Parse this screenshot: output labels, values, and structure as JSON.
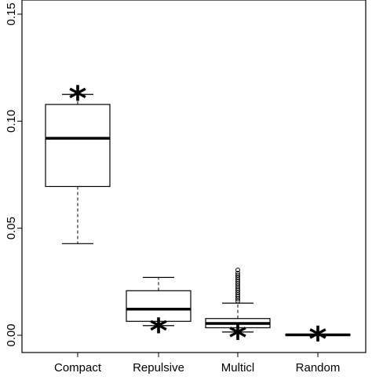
{
  "chart_data": {
    "type": "boxplot",
    "title": "",
    "xlabel": "",
    "ylabel": "",
    "ylim": [
      -0.005,
      0.155
    ],
    "yticks": [
      0.0,
      0.05,
      0.1,
      0.15
    ],
    "ytick_labels": [
      "0.00",
      "0.05",
      "0.10",
      "0.15"
    ],
    "grid": false,
    "legend": "none",
    "categories": [
      "Compact",
      "Repulsive",
      "Multicl",
      "Random"
    ],
    "boxes": [
      {
        "category": "Compact",
        "whisker_low": 0.0428,
        "q1": 0.0695,
        "median": 0.092,
        "q3": 0.1078,
        "whisker_high": 0.1125,
        "outliers": [],
        "star": 0.112
      },
      {
        "category": "Repulsive",
        "whisker_low": 0.0045,
        "q1": 0.0065,
        "median": 0.0122,
        "q3": 0.0208,
        "whisker_high": 0.027,
        "outliers": [],
        "star": 0.0035
      },
      {
        "category": "Multicl",
        "whisker_low": 0.0015,
        "q1": 0.0035,
        "median": 0.0055,
        "q3": 0.0078,
        "whisker_high": 0.015,
        "outliers": [
          0.016,
          0.017,
          0.018,
          0.019,
          0.02,
          0.021,
          0.022,
          0.023,
          0.024,
          0.025,
          0.026,
          0.027,
          0.028,
          0.029,
          0.0305
        ],
        "star": 0.0003
      },
      {
        "category": "Random",
        "whisker_low": 0.0,
        "q1": 0.0,
        "median": 0.0002,
        "q3": 0.0004,
        "whisker_high": 0.0005,
        "outliers": [],
        "star": -0.0003
      }
    ],
    "star_symbol": "*"
  }
}
